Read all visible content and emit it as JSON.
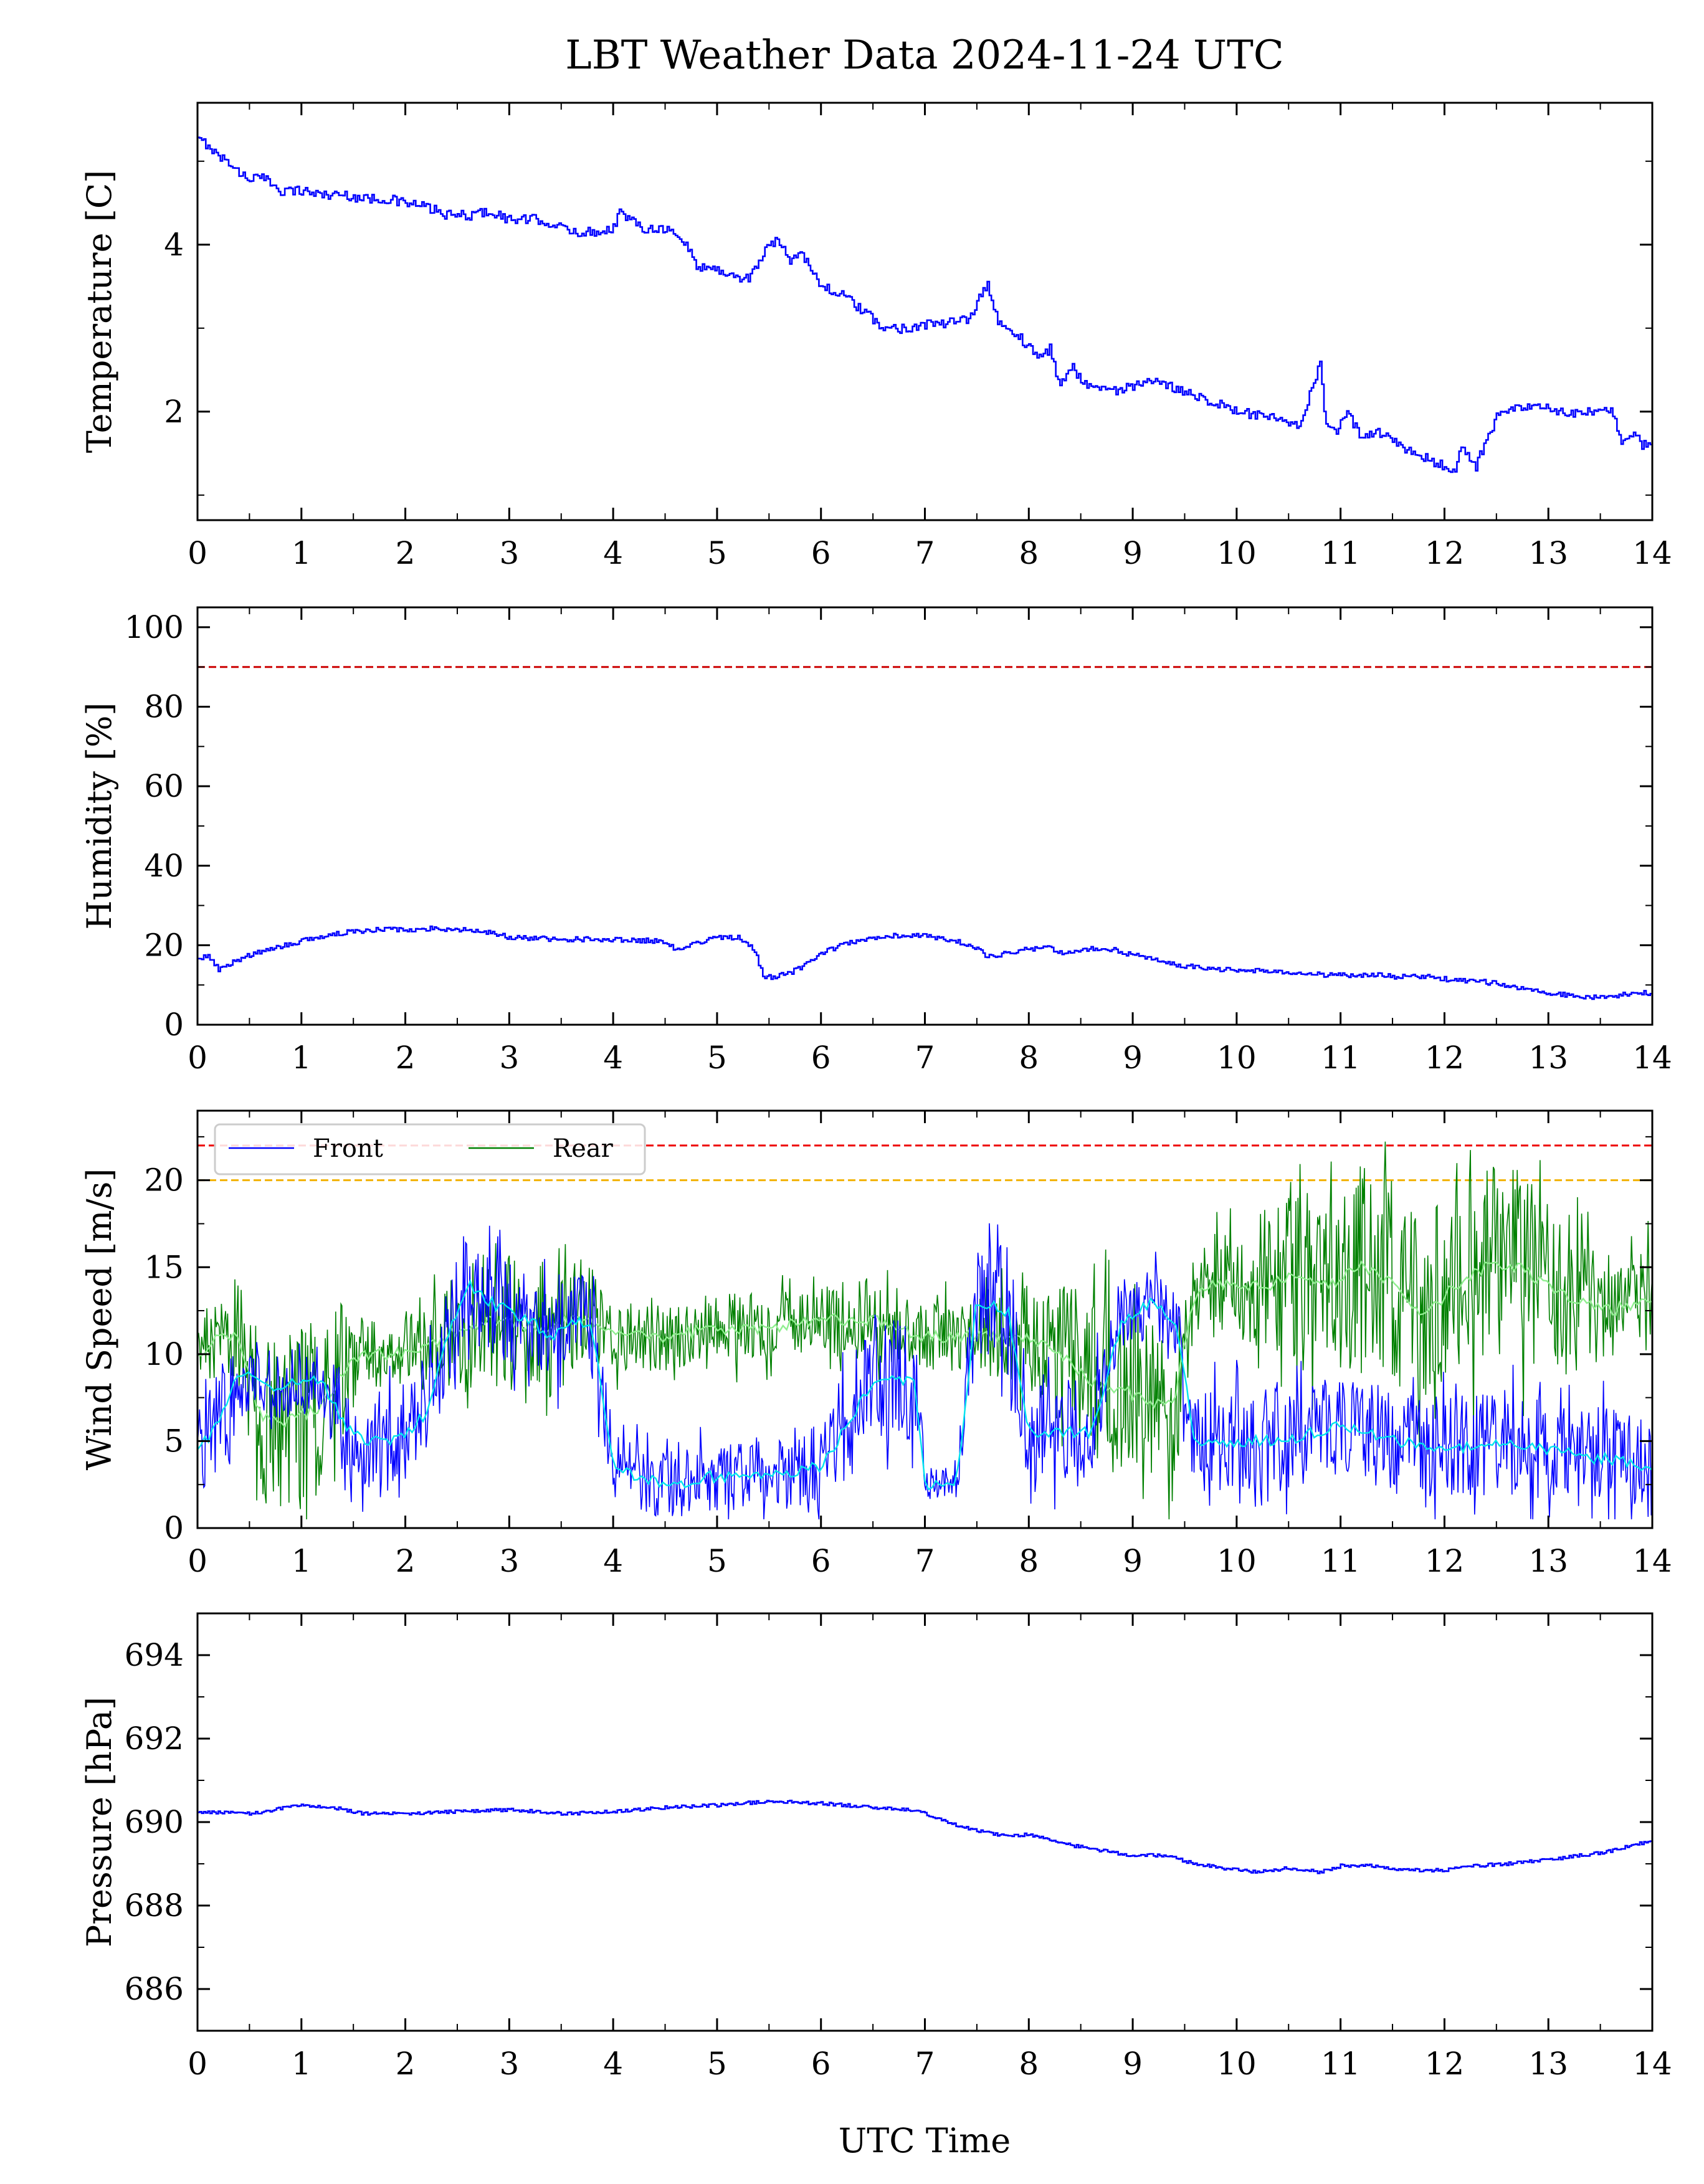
{
  "figure": {
    "title": "LBT Weather Data 2024-11-24 UTC",
    "xlabel": "UTC Time"
  },
  "chart_data": [
    {
      "type": "line",
      "ylabel": "Temperature [C]",
      "xlim": [
        0,
        14
      ],
      "ylim": [
        0.7,
        5.7
      ],
      "xticks": [
        0,
        1,
        2,
        3,
        4,
        5,
        6,
        7,
        8,
        9,
        10,
        11,
        12,
        13,
        14
      ],
      "yticks": [
        2,
        4
      ],
      "grid": false,
      "series": [
        {
          "color": "#0000ff",
          "x": [
            0,
            0.1,
            0.2,
            0.3,
            0.4,
            0.5,
            0.6,
            0.7,
            0.8,
            1.0,
            1.2,
            1.4,
            1.6,
            1.8,
            2.0,
            2.2,
            2.4,
            2.6,
            2.8,
            3.0,
            3.3,
            3.6,
            3.8,
            4.0,
            4.05,
            4.15,
            4.3,
            4.5,
            4.7,
            4.8,
            5.0,
            5.2,
            5.3,
            5.4,
            5.5,
            5.6,
            5.7,
            5.8,
            5.9,
            6.0,
            6.2,
            6.4,
            6.6,
            6.8,
            7.0,
            7.2,
            7.4,
            7.5,
            7.6,
            7.7,
            7.9,
            8.1,
            8.2,
            8.3,
            8.4,
            8.5,
            8.6,
            8.8,
            9.0,
            9.2,
            9.5,
            9.8,
            10.0,
            10.2,
            10.4,
            10.6,
            10.8,
            10.85,
            10.95,
            11.05,
            11.2,
            11.4,
            11.6,
            11.8,
            12.0,
            12.1,
            12.15,
            12.3,
            12.4,
            12.5,
            12.6,
            12.8,
            13.0,
            13.2,
            13.4,
            13.6,
            13.7,
            13.8,
            13.9,
            14.0
          ],
          "y": [
            5.25,
            5.2,
            5.05,
            5.0,
            4.85,
            4.8,
            4.8,
            4.75,
            4.65,
            4.65,
            4.6,
            4.6,
            4.55,
            4.55,
            4.5,
            4.45,
            4.35,
            4.35,
            4.4,
            4.3,
            4.3,
            4.15,
            4.15,
            4.2,
            4.4,
            4.3,
            4.2,
            4.2,
            4.0,
            3.75,
            3.7,
            3.6,
            3.6,
            3.8,
            4.0,
            4.05,
            3.8,
            3.95,
            3.7,
            3.5,
            3.4,
            3.2,
            3.0,
            3.0,
            3.05,
            3.05,
            3.1,
            3.3,
            3.55,
            3.05,
            2.9,
            2.65,
            2.75,
            2.3,
            2.55,
            2.4,
            2.3,
            2.25,
            2.3,
            2.35,
            2.25,
            2.1,
            2.0,
            1.95,
            1.9,
            1.8,
            2.6,
            1.8,
            1.75,
            2.0,
            1.7,
            1.75,
            1.55,
            1.45,
            1.35,
            1.25,
            1.6,
            1.35,
            1.65,
            1.95,
            2.0,
            2.05,
            2.05,
            1.95,
            2.0,
            2.0,
            1.65,
            1.75,
            1.6,
            1.65
          ]
        }
      ]
    },
    {
      "type": "line",
      "ylabel": "Humidity [%]",
      "xlim": [
        0,
        14
      ],
      "ylim": [
        0,
        105
      ],
      "xticks": [
        0,
        1,
        2,
        3,
        4,
        5,
        6,
        7,
        8,
        9,
        10,
        11,
        12,
        13,
        14
      ],
      "yticks": [
        0,
        20,
        40,
        60,
        80,
        100
      ],
      "grid": false,
      "threshold": 90,
      "threshold_color": "#cc0000",
      "series": [
        {
          "color": "#0000ff",
          "x": [
            0,
            0.1,
            0.2,
            0.35,
            0.5,
            0.75,
            1.0,
            1.25,
            1.5,
            1.75,
            2.0,
            2.25,
            2.5,
            2.75,
            3.0,
            3.5,
            4.0,
            4.5,
            4.6,
            4.7,
            5.0,
            5.2,
            5.35,
            5.45,
            5.55,
            5.7,
            5.85,
            6.0,
            6.2,
            6.5,
            6.7,
            7.0,
            7.3,
            7.5,
            7.6,
            7.8,
            8.0,
            8.2,
            8.3,
            8.5,
            8.8,
            9.0,
            9.2,
            9.4,
            9.6,
            9.8,
            10.0,
            10.3,
            10.6,
            10.9,
            11.0,
            11.3,
            11.6,
            11.9,
            12.0,
            12.3,
            12.6,
            13.0,
            13.3,
            13.6,
            13.8,
            14.0
          ],
          "y": [
            17,
            17,
            14,
            16,
            17.5,
            19.5,
            21,
            22.5,
            23.5,
            24,
            24,
            24.2,
            24,
            23.5,
            22,
            21.5,
            21.5,
            21,
            19,
            20,
            22,
            22,
            19,
            12,
            12,
            13,
            15,
            18,
            20,
            22,
            22.5,
            22.5,
            21,
            19,
            17,
            18,
            19,
            19.5,
            18,
            19,
            19,
            17.5,
            16.5,
            15,
            14.5,
            14,
            13.5,
            13.5,
            13,
            12.5,
            12.5,
            12.5,
            12,
            12,
            11.5,
            11,
            10,
            8,
            7,
            7,
            8,
            8
          ]
        }
      ]
    },
    {
      "type": "line",
      "ylabel": "Wind Speed [m/s]",
      "xlim": [
        0,
        14
      ],
      "ylim": [
        0,
        24
      ],
      "xticks": [
        0,
        1,
        2,
        3,
        4,
        5,
        6,
        7,
        8,
        9,
        10,
        11,
        12,
        13,
        14
      ],
      "yticks": [
        0,
        5,
        10,
        15,
        20
      ],
      "grid": false,
      "thresholds": [
        {
          "value": 22,
          "color": "#ee0000"
        },
        {
          "value": 20,
          "color": "#f2b200"
        }
      ],
      "legend": {
        "position": "upper-left",
        "entries": [
          "Front",
          "Rear"
        ]
      },
      "series": [
        {
          "name": "Rear",
          "color": "#008000",
          "smooth_color": "#90ee90",
          "x": [
            0,
            0.2,
            0.4,
            0.6,
            0.8,
            1.0,
            1.2,
            1.4,
            1.6,
            1.8,
            2.0,
            2.2,
            2.4,
            2.6,
            2.8,
            3.0,
            3.2,
            3.4,
            3.6,
            3.8,
            4.0,
            4.5,
            5.0,
            5.5,
            6.0,
            6.5,
            7.0,
            7.5,
            8.0,
            8.3,
            8.6,
            8.9,
            9.2,
            9.4,
            9.6,
            9.8,
            10.0,
            10.3,
            10.6,
            10.9,
            11.2,
            11.5,
            11.8,
            12.1,
            12.4,
            12.7,
            13.0,
            13.3,
            13.6,
            13.9,
            14.0
          ],
          "y": [
            10,
            11,
            11,
            6.5,
            6,
            6.5,
            7,
            9,
            10,
            10,
            10,
            10.5,
            11,
            11.5,
            12,
            12,
            11.5,
            11.5,
            12,
            12,
            11,
            11,
            11.5,
            11.5,
            12,
            12,
            11,
            11,
            11,
            10,
            8.5,
            8,
            7,
            7.5,
            13.5,
            14,
            14,
            14,
            14.5,
            14,
            15,
            14,
            12,
            14,
            15,
            15,
            14,
            13,
            12.5,
            13,
            13
          ],
          "spread": [
            2,
            2.5,
            3,
            5,
            5,
            5,
            5,
            4,
            2,
            2,
            2,
            2.5,
            3,
            4,
            4,
            4,
            4,
            4,
            3,
            3,
            2,
            2,
            2,
            2,
            2,
            2.5,
            2,
            2,
            3,
            4,
            5,
            5,
            5,
            5,
            3,
            3,
            3,
            4,
            5,
            5,
            6,
            6,
            6,
            6,
            6,
            6,
            5,
            4,
            3,
            3,
            3
          ]
        },
        {
          "name": "Front",
          "color": "#0000ff",
          "smooth_color": "#00e5ee",
          "x": [
            0,
            0.2,
            0.4,
            0.6,
            0.8,
            1.0,
            1.2,
            1.4,
            1.6,
            1.8,
            2.0,
            2.2,
            2.4,
            2.6,
            2.8,
            3.0,
            3.2,
            3.4,
            3.6,
            3.8,
            4.0,
            4.5,
            5.0,
            5.5,
            6.0,
            6.5,
            6.9,
            7.0,
            7.3,
            7.5,
            7.8,
            8.0,
            8.3,
            8.6,
            8.9,
            9.2,
            9.4,
            9.6,
            10.0,
            10.5,
            11.0,
            11.5,
            12.0,
            12.5,
            13.0,
            13.5,
            14.0
          ],
          "y": [
            4.5,
            6,
            9,
            8.5,
            8,
            8.5,
            8.5,
            6,
            5,
            5,
            5.5,
            6.5,
            11,
            14,
            13,
            12.5,
            12,
            11,
            12,
            11.5,
            3.5,
            2.5,
            3,
            3,
            3.5,
            8.5,
            8.5,
            2.5,
            2.5,
            13,
            12.5,
            5.5,
            5.5,
            5.5,
            12,
            13,
            12,
            5,
            5,
            5,
            6,
            5,
            4.5,
            5,
            4.5,
            4,
            3.5
          ],
          "spread": [
            2.5,
            3,
            3,
            2,
            2,
            2,
            2,
            3,
            3,
            3,
            3,
            3,
            3,
            3,
            3,
            3,
            3,
            3,
            3,
            3,
            2,
            2,
            2,
            2,
            2.5,
            4,
            4,
            1,
            1,
            3,
            4,
            3,
            3,
            3,
            2,
            2,
            2,
            3,
            3,
            3,
            3,
            3,
            3,
            3,
            3,
            3,
            3
          ]
        }
      ]
    },
    {
      "type": "line",
      "ylabel": "Pressure [hPa]",
      "xlim": [
        0,
        14
      ],
      "ylim": [
        685,
        695
      ],
      "xticks": [
        0,
        1,
        2,
        3,
        4,
        5,
        6,
        7,
        8,
        9,
        10,
        11,
        12,
        13,
        14
      ],
      "yticks": [
        686,
        688,
        690,
        692,
        694
      ],
      "grid": false,
      "series": [
        {
          "color": "#0000ff",
          "x": [
            0,
            0.5,
            1.0,
            1.3,
            1.6,
            2.0,
            2.5,
            3.0,
            3.5,
            4.0,
            4.5,
            5.0,
            5.5,
            6.0,
            6.5,
            6.8,
            7.0,
            7.2,
            7.5,
            7.8,
            8.0,
            8.3,
            8.6,
            9.0,
            9.3,
            9.6,
            10.0,
            10.2,
            10.5,
            10.8,
            11.0,
            11.3,
            11.6,
            12.0,
            12.3,
            12.6,
            13.0,
            13.3,
            13.6,
            13.8,
            14.0
          ],
          "y": [
            690.25,
            690.2,
            690.4,
            690.35,
            690.2,
            690.2,
            690.25,
            690.3,
            690.2,
            690.25,
            690.35,
            690.4,
            690.5,
            690.45,
            690.35,
            690.3,
            690.2,
            690.0,
            689.8,
            689.65,
            689.7,
            689.5,
            689.35,
            689.2,
            689.2,
            689.0,
            688.85,
            688.8,
            688.9,
            688.8,
            688.95,
            688.95,
            688.85,
            688.85,
            688.95,
            689.0,
            689.1,
            689.2,
            689.3,
            689.45,
            689.55
          ]
        }
      ]
    }
  ]
}
